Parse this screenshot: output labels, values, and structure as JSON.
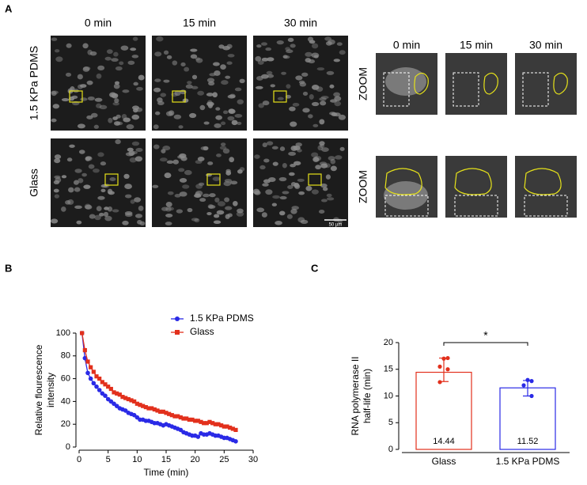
{
  "panel_a": {
    "label": "A",
    "columns": [
      "0 min",
      "15 min",
      "30 min"
    ],
    "rows": [
      "1.5 KPa PDMS",
      "Glass"
    ],
    "zoom_columns": [
      "0 min",
      "15 min",
      "30 min"
    ],
    "zoom_label": "ZOOM",
    "scale_bar": "50 µm"
  },
  "chart_data": [
    {
      "type": "line",
      "panel_label": "B",
      "xlabel": "Time (min)",
      "ylabel": [
        "Relative flourescence",
        "intensity"
      ],
      "xlim": [
        0,
        30
      ],
      "xticks": [
        0,
        5,
        10,
        15,
        20,
        25,
        30
      ],
      "ylim": [
        0,
        100
      ],
      "yticks": [
        0,
        20,
        40,
        60,
        80,
        100
      ],
      "x": [
        0.5,
        1,
        1.5,
        2,
        2.5,
        3,
        3.5,
        4,
        4.5,
        5,
        5.5,
        6,
        6.5,
        7,
        7.5,
        8,
        8.5,
        9,
        9.5,
        10,
        10.5,
        11,
        11.5,
        12,
        12.5,
        13,
        13.5,
        14,
        14.5,
        15,
        15.5,
        16,
        16.5,
        17,
        17.5,
        18,
        18.5,
        19,
        19.5,
        20,
        20.5,
        21,
        21.5,
        22,
        22.5,
        23,
        23.5,
        24,
        24.5,
        25,
        25.5,
        26,
        26.5,
        27
      ],
      "series": [
        {
          "name": "1.5 KPa PDMS",
          "color": "#2a2ae6",
          "marker": "circle",
          "values": [
            100,
            78,
            65,
            60,
            56,
            53,
            50,
            47,
            45,
            42,
            40,
            38,
            36,
            34,
            33,
            32,
            30,
            29,
            28,
            26,
            24,
            24,
            23,
            23,
            22,
            21,
            21,
            20,
            19,
            20,
            19,
            18,
            17,
            16,
            15,
            13,
            12,
            11,
            10,
            10,
            9,
            12,
            11,
            11,
            12,
            11,
            10,
            10,
            9,
            8,
            8,
            7,
            6,
            5
          ]
        },
        {
          "name": "Glass",
          "color": "#e2301c",
          "marker": "square",
          "values": [
            100,
            85,
            75,
            70,
            66,
            62,
            60,
            57,
            55,
            53,
            51,
            48,
            47,
            46,
            44,
            43,
            42,
            41,
            40,
            38,
            37,
            36,
            35,
            34,
            34,
            33,
            32,
            31,
            31,
            30,
            29,
            28,
            27,
            27,
            26,
            25,
            25,
            24,
            24,
            23,
            23,
            22,
            21,
            21,
            22,
            21,
            20,
            20,
            19,
            18,
            18,
            17,
            16,
            15
          ]
        }
      ]
    },
    {
      "type": "bar",
      "panel_label": "C",
      "ylabel": [
        "RNA polymerase II",
        "half-life (min)"
      ],
      "categories": [
        "Glass",
        "1.5 KPa PDMS"
      ],
      "values": [
        14.44,
        11.52
      ],
      "colors": [
        "#e2301c",
        "#2a2ae6"
      ],
      "points": [
        [
          17,
          17.1,
          15.5,
          15,
          12.6
        ],
        [
          13,
          12.8,
          12,
          10
        ]
      ],
      "error_ranges": [
        [
          12.7,
          17.1
        ],
        [
          10,
          12.9
        ]
      ],
      "ylim": [
        0,
        20
      ],
      "yticks": [
        0,
        5,
        10,
        15,
        20
      ],
      "significance": "*"
    }
  ]
}
